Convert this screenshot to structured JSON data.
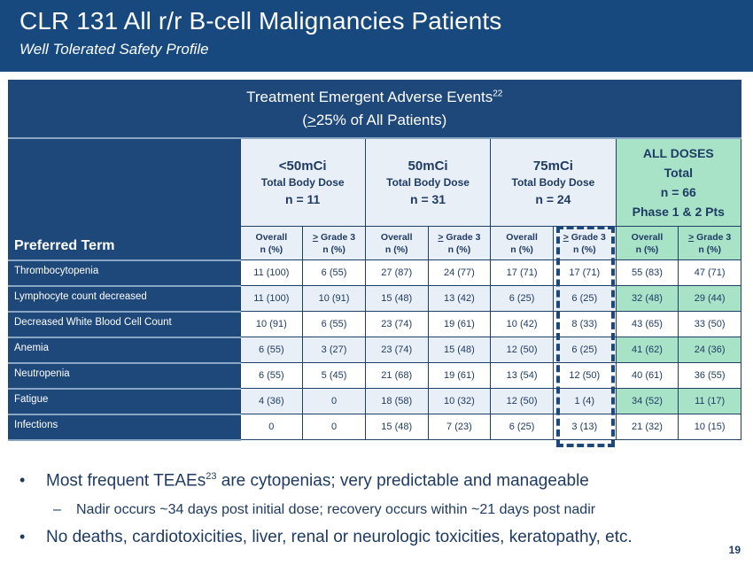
{
  "header": {
    "title": "CLR 131 All r/r B-cell Malignancies Patients",
    "subtitle": "Well Tolerated Safety Profile"
  },
  "table": {
    "caption_line1": "Treatment Emergent Adverse Events",
    "caption_sup": "22",
    "caption_line2_open": "(",
    "caption_line2_ge": ">",
    "caption_line2_rest": "25% of All Patients)",
    "preferred_term_label": "Preferred Term",
    "dose_groups": [
      {
        "dose": "<50mCi",
        "desc": "Total Body Dose",
        "n": "n = 11"
      },
      {
        "dose": "50mCi",
        "desc": "Total Body Dose",
        "n": "n = 31"
      },
      {
        "dose": "75mCi",
        "desc": "Total Body Dose",
        "n": "n = 24"
      },
      {
        "dose": "ALL DOSES",
        "desc": "Total",
        "n": "n = 66",
        "extra": "Phase 1 & 2 Pts"
      }
    ],
    "sub_headers": {
      "overall": "Overall",
      "grade_ge": ">",
      "grade_rest": " Grade 3",
      "n_pct": "n (%)"
    },
    "rows": [
      {
        "term": "Thrombocytopenia",
        "values": [
          "11 (100)",
          "6 (55)",
          "27 (87)",
          "24 (77)",
          "17 (71)",
          "17 (71)",
          "55 (83)",
          "47 (71)"
        ]
      },
      {
        "term": "Lymphocyte count decreased",
        "values": [
          "11 (100)",
          "10 (91)",
          "15 (48)",
          "13 (42)",
          "6 (25)",
          "6 (25)",
          "32 (48)",
          "29 (44)"
        ]
      },
      {
        "term": "Decreased White Blood Cell Count",
        "values": [
          "10 (91)",
          "6 (55)",
          "23 (74)",
          "19 (61)",
          "10 (42)",
          "8 (33)",
          "43 (65)",
          "33 (50)"
        ]
      },
      {
        "term": "Anemia",
        "values": [
          "6 (55)",
          "3 (27)",
          "23 (74)",
          "15 (48)",
          "12 (50)",
          "6 (25)",
          "41 (62)",
          "24 (36)"
        ]
      },
      {
        "term": "Neutropenia",
        "values": [
          "6 (55)",
          "5 (45)",
          "21 (68)",
          "19 (61)",
          "13 (54)",
          "12 (50)",
          "40 (61)",
          "36 (55)"
        ]
      },
      {
        "term": "Fatigue",
        "values": [
          "4 (36)",
          "0",
          "18 (58)",
          "10 (32)",
          "12 (50)",
          "1 (4)",
          "34 (52)",
          "11 (17)"
        ]
      },
      {
        "term": "Infections",
        "values": [
          "0",
          "0",
          "15 (48)",
          "7 (23)",
          "6 (25)",
          "3 (13)",
          "21 (32)",
          "10 (15)"
        ]
      }
    ],
    "highlighted_column": "75mCi ≥ Grade 3"
  },
  "bullets": {
    "b1_pre": "Most frequent TEAEs",
    "b1_sup": "23",
    "b1_post": " are cytopenias; very predictable and manageable",
    "b2": "Nadir occurs ~34 days post initial dose; recovery occurs within ~21 days post nadir",
    "b3": "No deaths, cardiotoxicities, liver, renal or neurologic toxicities, keratopathy, etc.",
    "bullet_glyph": "•",
    "dash_glyph": "–"
  },
  "page_number": "19",
  "colors": {
    "header_bg": "#17497f",
    "table_dark": "#1e477a",
    "table_light": "#e9eff7",
    "table_green": "#a8e3c8",
    "text_navy": "#1f3b63"
  }
}
